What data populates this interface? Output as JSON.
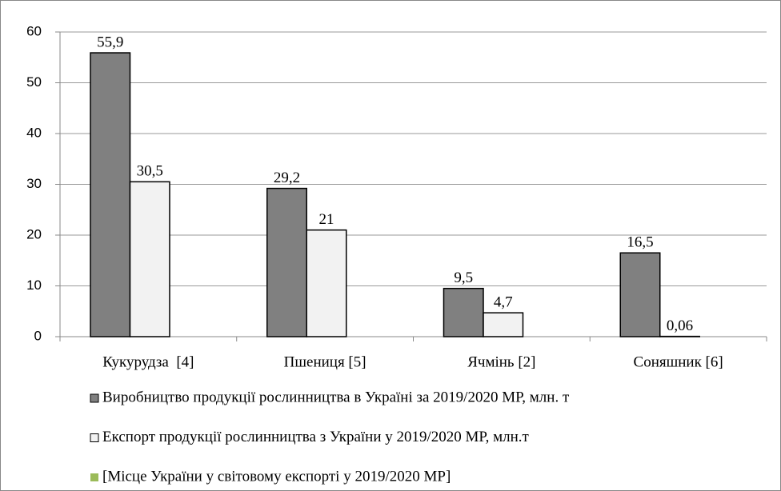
{
  "chart_data": {
    "type": "bar",
    "categories": [
      "Кукурудза  [4]",
      "Пшениця [5]",
      "Ячмінь [2]",
      "Соняшник [6]"
    ],
    "series": [
      {
        "name": "Виробництво продукції рослинництва в Україні за 2019/2020 МР, млн. т",
        "color": "#808080",
        "values": [
          55.9,
          29.2,
          9.5,
          16.5
        ],
        "value_labels": [
          "55,9",
          "29,2",
          "9,5",
          "16,5"
        ]
      },
      {
        "name": "Експорт продукції рослинництва з України у 2019/2020 МР, млн.т",
        "color": "#f2f2f2",
        "values": [
          30.5,
          21,
          4.7,
          0.06
        ],
        "value_labels": [
          "30,5",
          "21",
          "4,7",
          "0,06"
        ]
      },
      {
        "name": "[Місце України у світовому експорті у 2019/2020 МР]",
        "color": "#9bbb59",
        "values": [
          null,
          null,
          null,
          null
        ]
      }
    ],
    "ylim": [
      0,
      60
    ],
    "yticks": [
      0,
      10,
      20,
      30,
      40,
      50,
      60
    ],
    "grid": true,
    "legend": "bottom"
  }
}
